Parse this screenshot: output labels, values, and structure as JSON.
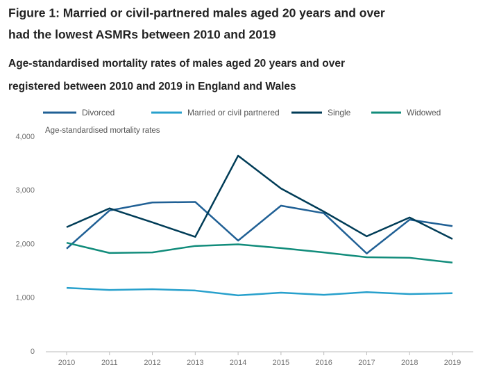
{
  "chart_data": {
    "type": "line",
    "title": [
      "Figure 1: Married or civil-partnered males aged 20 years and over",
      "had the lowest ASMRs between 2010 and 2019"
    ],
    "subtitle": [
      "Age-standardised mortality rates of males aged 20 years and over",
      "registered between 2010 and 2019 in England and Wales"
    ],
    "y_label": "Age-standardised mortality rates",
    "categories": [
      "2010",
      "2011",
      "2012",
      "2013",
      "2014",
      "2015",
      "2016",
      "2017",
      "2018",
      "2019"
    ],
    "series": [
      {
        "name": "Divorced",
        "color": "#206095",
        "values": [
          1920,
          2630,
          2780,
          2790,
          2070,
          2720,
          2580,
          1830,
          2460,
          2340
        ]
      },
      {
        "name": "Married or civil partnered",
        "color": "#27a0cc",
        "values": [
          1190,
          1150,
          1165,
          1140,
          1050,
          1100,
          1060,
          1110,
          1075,
          1090
        ]
      },
      {
        "name": "Single",
        "color": "#003c57",
        "values": [
          2320,
          2670,
          2410,
          2140,
          3650,
          3040,
          2610,
          2150,
          2500,
          2100
        ]
      },
      {
        "name": "Widowed",
        "color": "#118c7b",
        "values": [
          2030,
          1840,
          1850,
          1970,
          2000,
          1930,
          1850,
          1760,
          1750,
          1660
        ]
      }
    ],
    "ylim": [
      0,
      4000
    ],
    "yticks": [
      0,
      {
        "value": 1000,
        "label": "1,000"
      },
      {
        "value": 2000,
        "label": "2,000"
      },
      {
        "value": 3000,
        "label": "3,000"
      },
      {
        "value": 4000,
        "label": "4,000"
      }
    ],
    "grid": false
  }
}
